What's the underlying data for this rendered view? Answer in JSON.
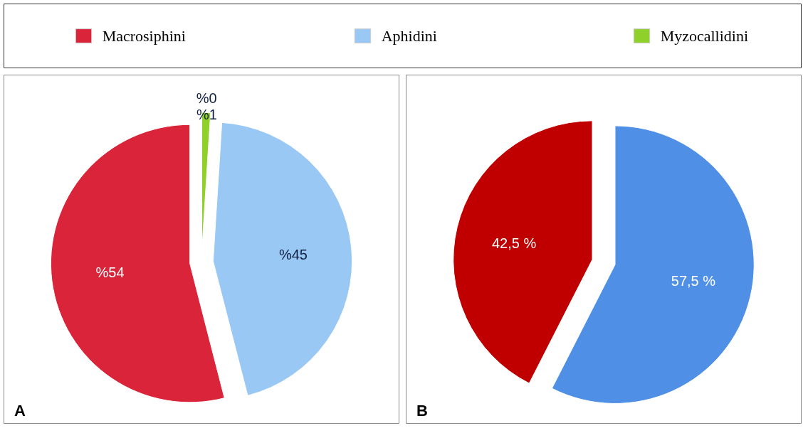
{
  "chart_data": [
    {
      "type": "pie",
      "categories": [
        "Macrosiphini",
        "Aphidini",
        "Myzocallidini"
      ],
      "values": [
        54,
        45,
        1
      ],
      "colors": [
        "#d9243a",
        "#99c8f5",
        "#8fd12a"
      ],
      "value_labels": [
        "%54",
        "%45",
        "%1"
      ],
      "legend": "top",
      "annotations": [
        "A",
        {
          "text": "%0",
          "x": "Myzocallidini"
        }
      ]
    },
    {
      "type": "pie",
      "categories": [
        null,
        null
      ],
      "values": [
        42.5,
        57.5
      ],
      "colors": [
        "#c00000",
        "#4f8fe6"
      ],
      "value_labels": [
        "42,5 %",
        "57,5 %"
      ],
      "annotations": [
        "B"
      ]
    }
  ]
}
